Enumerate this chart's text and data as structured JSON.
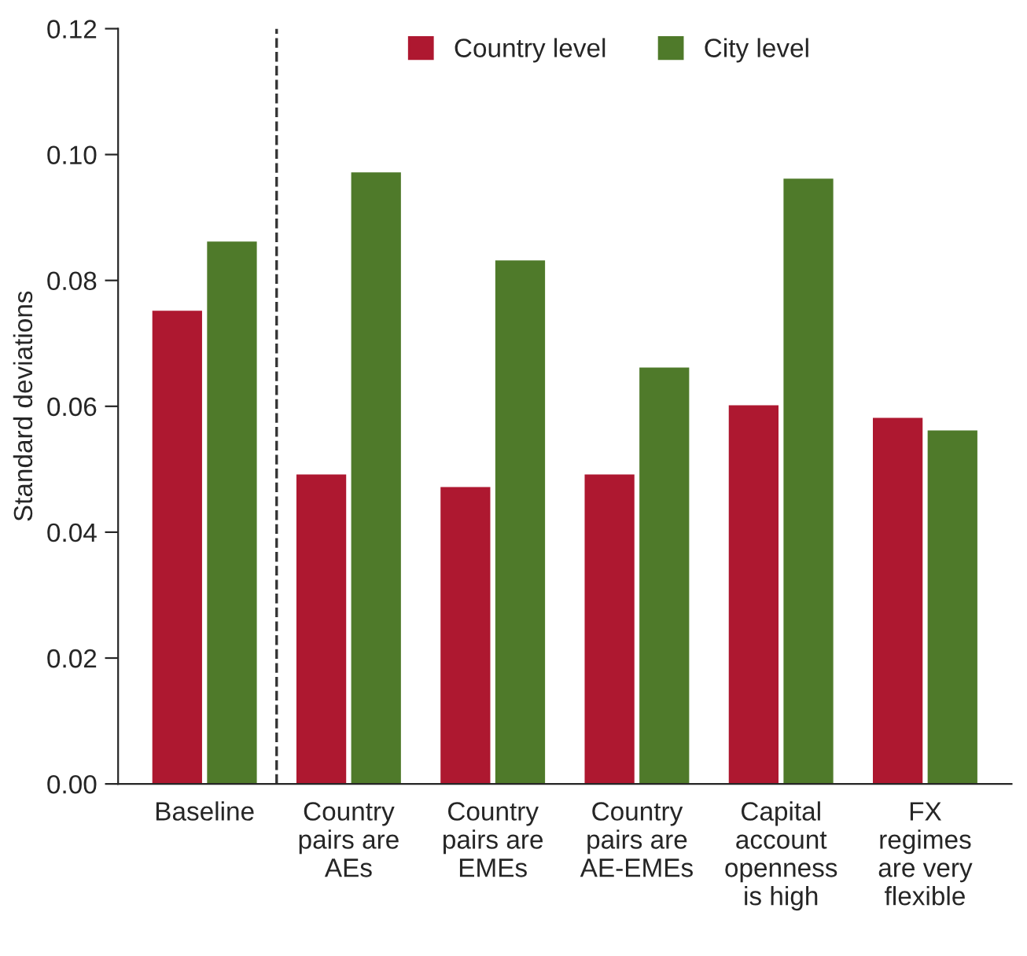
{
  "chart_data": {
    "type": "bar",
    "ylabel": "Standard deviations",
    "categories": [
      "Baseline",
      "Country\npairs are\nAEs",
      "Country\npairs are\nEMEs",
      "Country\npairs are\nAE-EMEs",
      "Capital\naccount\nopenness\nis high",
      "FX\nregimes\nare very\nflexible"
    ],
    "series": [
      {
        "name": "Country level",
        "color": "#ae1830",
        "values": [
          0.075,
          0.049,
          0.047,
          0.049,
          0.06,
          0.058
        ]
      },
      {
        "name": "City level",
        "color": "#4f7a2a",
        "values": [
          0.086,
          0.097,
          0.083,
          0.066,
          0.096,
          0.056
        ]
      }
    ],
    "ylim": [
      0,
      0.12
    ],
    "yticks": [
      {
        "value": 0,
        "label": "0.00"
      },
      {
        "value": 0.02,
        "label": "0.02"
      },
      {
        "value": 0.04,
        "label": "0.04"
      },
      {
        "value": 0.06,
        "label": "0.06"
      },
      {
        "value": 0.08,
        "label": "0.08"
      },
      {
        "value": 0.1,
        "label": "0.10"
      },
      {
        "value": 0.12,
        "label": "0.12"
      }
    ],
    "legend": "top",
    "grid": false
  }
}
